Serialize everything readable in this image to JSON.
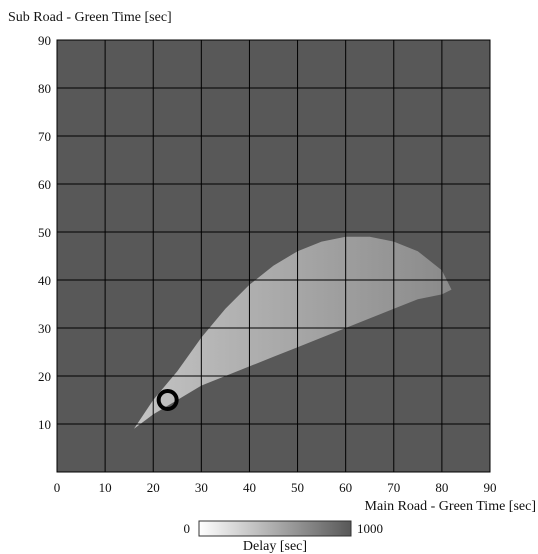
{
  "chart_data": {
    "type": "heatmap",
    "title": "",
    "xlabel": "Main Road - Green Time [sec]",
    "ylabel": "Sub Road - Green Time [sec]",
    "xlim": [
      0,
      90
    ],
    "ylim": [
      0,
      90
    ],
    "x_ticks": [
      0,
      10,
      20,
      30,
      40,
      50,
      60,
      70,
      80,
      90
    ],
    "y_ticks": [
      10,
      20,
      30,
      40,
      50,
      60,
      70,
      80,
      90
    ],
    "grid": true,
    "background_value": 1000,
    "region": {
      "description_values_in_data_units": true,
      "vertex": [
        16,
        9
      ],
      "upper_boundary": [
        [
          16,
          9
        ],
        [
          20,
          15
        ],
        [
          25,
          21
        ],
        [
          30,
          28
        ],
        [
          35,
          34
        ],
        [
          40,
          39
        ],
        [
          45,
          43
        ],
        [
          50,
          46
        ],
        [
          55,
          48
        ],
        [
          60,
          49
        ],
        [
          65,
          49
        ],
        [
          70,
          48
        ],
        [
          75,
          46
        ],
        [
          80,
          42
        ],
        [
          82,
          38
        ]
      ],
      "lower_boundary": [
        [
          16,
          9
        ],
        [
          20,
          12
        ],
        [
          25,
          15
        ],
        [
          30,
          18
        ],
        [
          35,
          20
        ],
        [
          40,
          22
        ],
        [
          45,
          24
        ],
        [
          50,
          26
        ],
        [
          55,
          28
        ],
        [
          60,
          30
        ],
        [
          65,
          32
        ],
        [
          70,
          34
        ],
        [
          75,
          36
        ],
        [
          80,
          37
        ],
        [
          82,
          38
        ]
      ]
    },
    "marker": {
      "x": 23,
      "y": 15,
      "shape": "ring"
    },
    "colorbar": {
      "label": "Delay [sec]",
      "min": 0,
      "max": 1000,
      "min_color": "#ffffff",
      "max_color": "#585858"
    },
    "colors": {
      "plot_background": "#585858",
      "grid": "#000000",
      "region_near": "#c4c4c4",
      "region_far": "#8a8a8a",
      "marker": "#000000"
    }
  }
}
